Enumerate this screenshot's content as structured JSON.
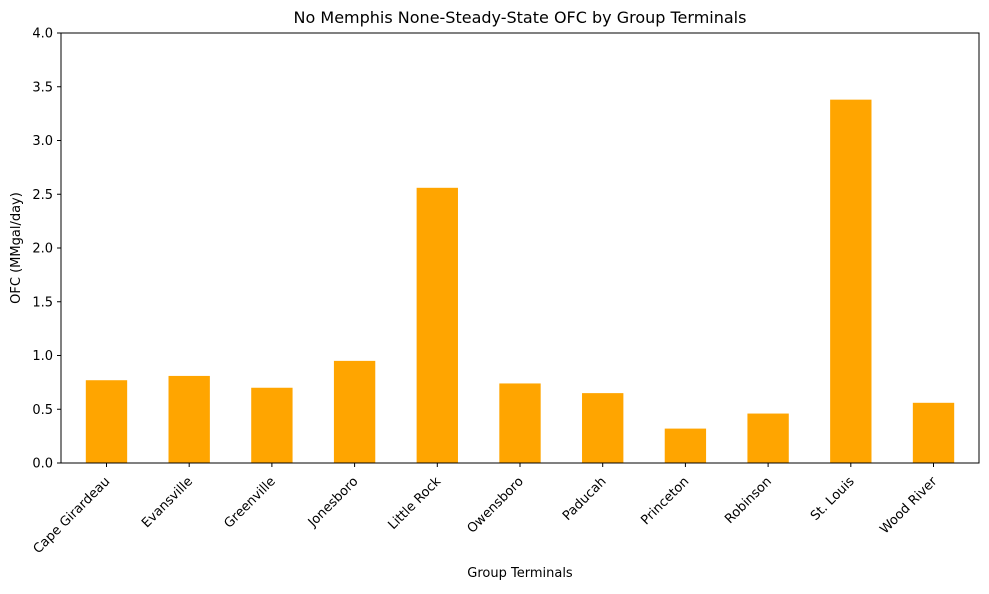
{
  "chart_data": {
    "type": "bar",
    "title": "No Memphis None-Steady-State OFC by Group Terminals",
    "xlabel": "Group Terminals",
    "ylabel": "OFC (MMgal/day)",
    "categories": [
      "Cape Girardeau",
      "Evansville",
      "Greenville",
      "Jonesboro",
      "Little Rock",
      "Owensboro",
      "Paducah",
      "Princeton",
      "Robinson",
      "St. Louis",
      "Wood River"
    ],
    "values": [
      0.77,
      0.81,
      0.7,
      0.95,
      2.56,
      0.74,
      0.65,
      0.32,
      0.46,
      3.38,
      0.56
    ],
    "ylim": [
      0,
      4.0
    ],
    "yticks": [
      "0.0",
      "0.5",
      "1.0",
      "1.5",
      "2.0",
      "2.5",
      "3.0",
      "3.5",
      "4.0"
    ],
    "grid": false,
    "legend": "none",
    "bar_color": "#ffa500"
  }
}
